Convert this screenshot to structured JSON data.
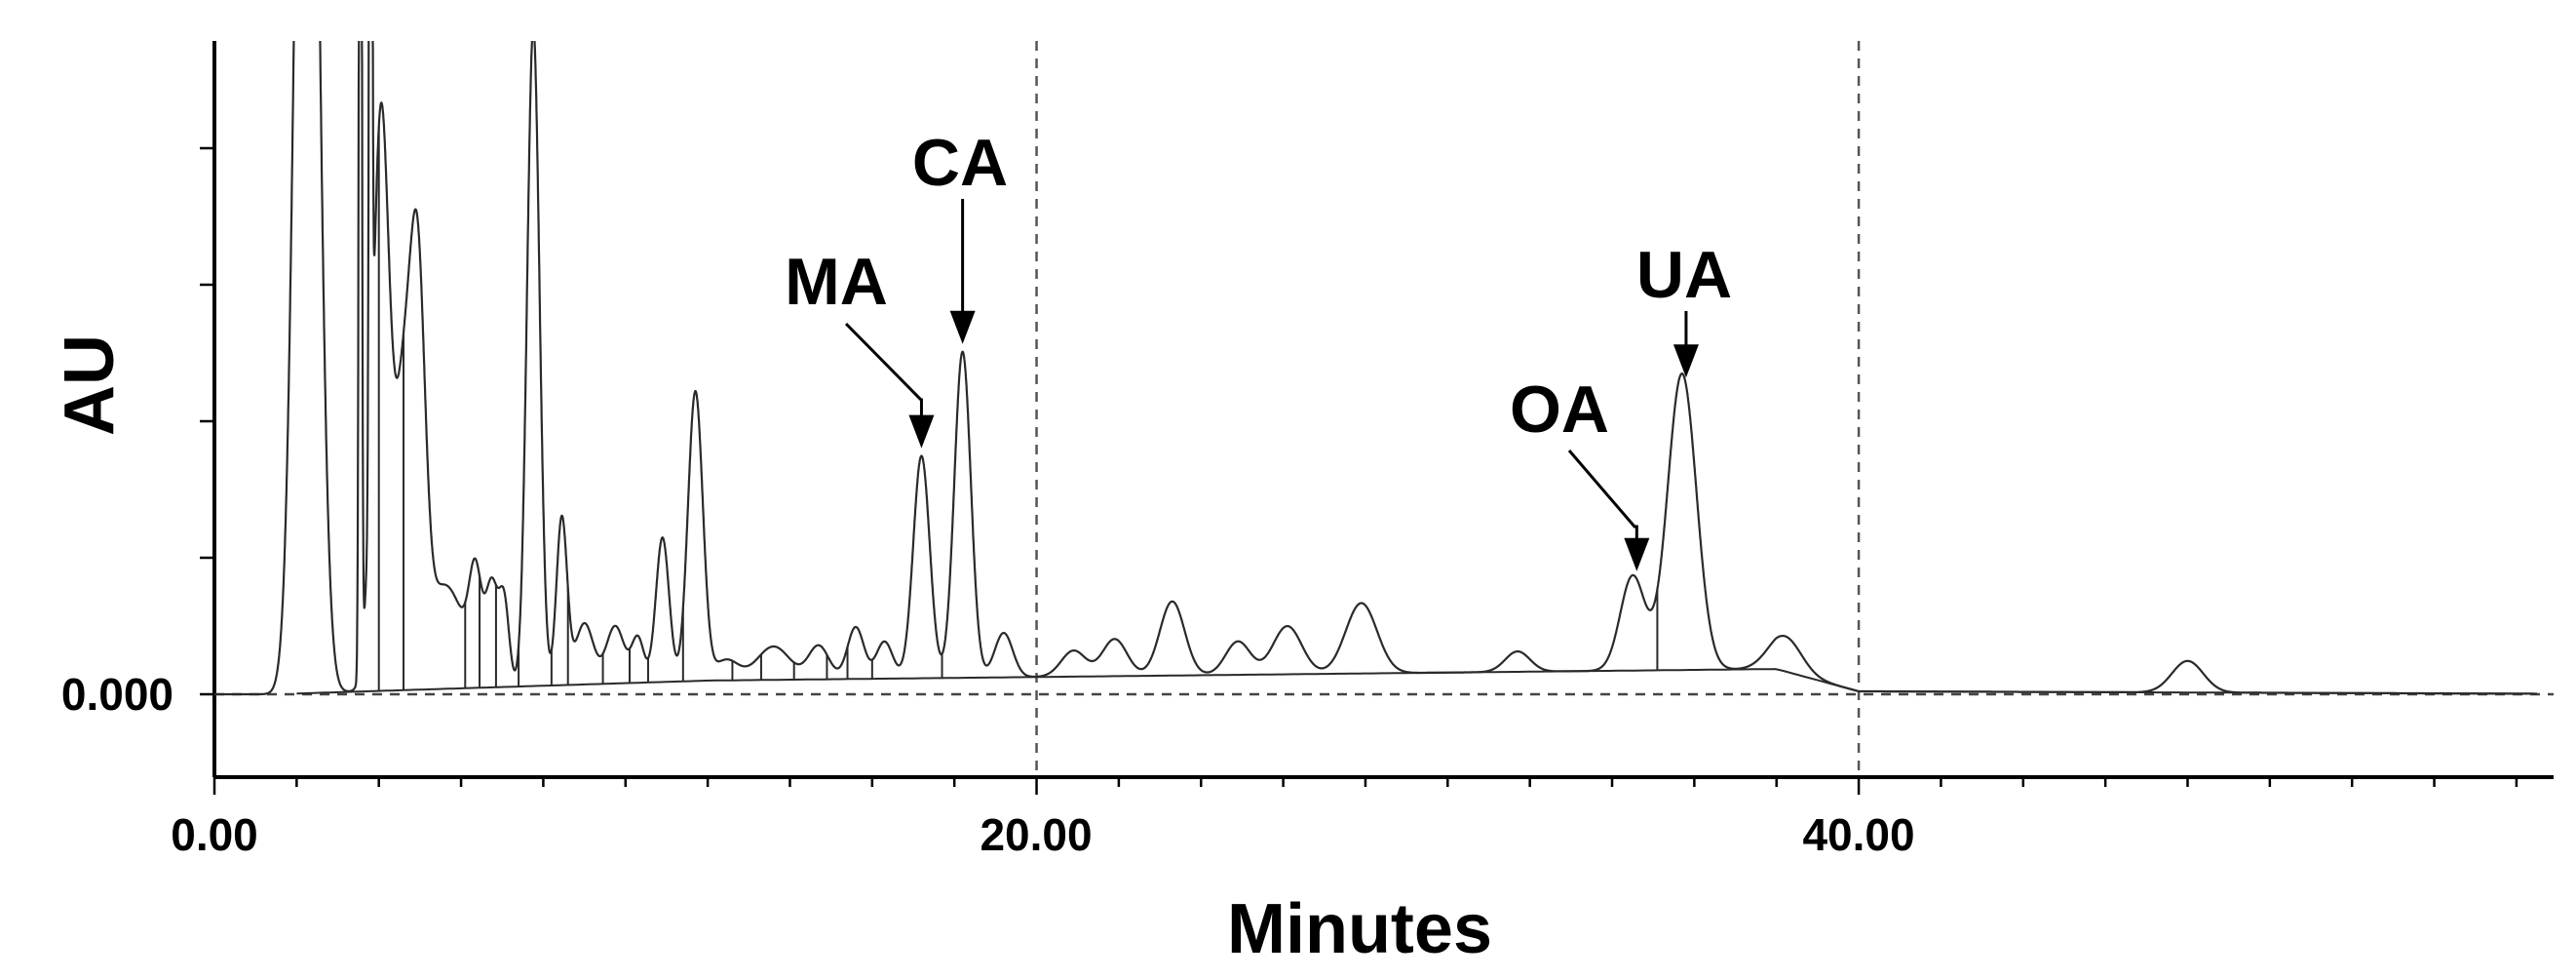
{
  "chart_data": {
    "type": "line",
    "xlabel": "Minutes",
    "ylabel": "AU",
    "xlim": [
      0,
      56.5
    ],
    "ylim": [
      -2,
      16
    ],
    "x_tick_labels": [
      "0.00",
      "20.00",
      "40.00"
    ],
    "y_tick_labels": [
      "0.000"
    ],
    "grid": "vertical dashed at 20.00 and 40.00; horizontal dashed at 0.000",
    "annotations": [
      {
        "label": "MA",
        "x": 17.2
      },
      {
        "label": "CA",
        "x": 18.2
      },
      {
        "label": "OA",
        "x": 34.6
      },
      {
        "label": "UA",
        "x": 35.8
      }
    ],
    "series": [
      {
        "peaks": [
          {
            "x": 2.25,
            "h": 40.0,
            "w": 0.25
          },
          {
            "x": 3.55,
            "h": 40.0,
            "w": 0.03
          },
          {
            "x": 3.8,
            "h": 40.0,
            "w": 0.03
          },
          {
            "x": 4.05,
            "h": 15.5,
            "w": 0.2
          },
          {
            "x": 4.6,
            "h": 7.5,
            "w": 0.22
          },
          {
            "x": 4.95,
            "h": 9.3,
            "w": 0.18
          },
          {
            "x": 5.6,
            "h": 2.8,
            "w": 0.5
          },
          {
            "x": 6.35,
            "h": 2.5,
            "w": 0.15
          },
          {
            "x": 6.75,
            "h": 2.6,
            "w": 0.15
          },
          {
            "x": 7.05,
            "h": 2.2,
            "w": 0.12
          },
          {
            "x": 7.8,
            "h": 2.7,
            "w": 0.15
          },
          {
            "x": 7.75,
            "h": 15.2,
            "w": 0.15
          },
          {
            "x": 8.45,
            "h": 4.5,
            "w": 0.13
          },
          {
            "x": 9.0,
            "h": 1.65,
            "w": 0.22
          },
          {
            "x": 9.75,
            "h": 1.55,
            "w": 0.22
          },
          {
            "x": 10.3,
            "h": 1.2,
            "w": 0.15
          },
          {
            "x": 10.9,
            "h": 3.9,
            "w": 0.16
          },
          {
            "x": 11.7,
            "h": 7.8,
            "w": 0.18
          },
          {
            "x": 12.45,
            "h": 0.55,
            "w": 0.3
          },
          {
            "x": 13.6,
            "h": 0.9,
            "w": 0.4
          },
          {
            "x": 14.7,
            "h": 0.9,
            "w": 0.25
          },
          {
            "x": 15.6,
            "h": 1.4,
            "w": 0.2
          },
          {
            "x": 16.3,
            "h": 1.0,
            "w": 0.2
          },
          {
            "x": 17.2,
            "h": 6.0,
            "w": 0.2
          },
          {
            "x": 18.2,
            "h": 8.8,
            "w": 0.2
          },
          {
            "x": 19.2,
            "h": 1.2,
            "w": 0.22
          },
          {
            "x": 20.9,
            "h": 0.7,
            "w": 0.3
          },
          {
            "x": 21.9,
            "h": 1.0,
            "w": 0.3
          },
          {
            "x": 23.3,
            "h": 2.0,
            "w": 0.3
          },
          {
            "x": 24.9,
            "h": 0.9,
            "w": 0.3
          },
          {
            "x": 26.1,
            "h": 1.3,
            "w": 0.35
          },
          {
            "x": 27.9,
            "h": 1.9,
            "w": 0.38
          },
          {
            "x": 31.7,
            "h": 0.55,
            "w": 0.3
          },
          {
            "x": 34.5,
            "h": 2.55,
            "w": 0.3
          },
          {
            "x": 35.7,
            "h": 8.0,
            "w": 0.35
          },
          {
            "x": 38.2,
            "h": 0.95,
            "w": 0.4
          },
          {
            "x": 48.0,
            "h": 0.85,
            "w": 0.38
          }
        ],
        "drop_lines_x": [
          4.0,
          4.6,
          6.1,
          6.45,
          6.85,
          7.4,
          8.2,
          8.6,
          9.45,
          10.1,
          10.55,
          11.4,
          12.6,
          13.3,
          14.1,
          14.9,
          15.4,
          16.0,
          17.7,
          35.1
        ]
      }
    ]
  }
}
